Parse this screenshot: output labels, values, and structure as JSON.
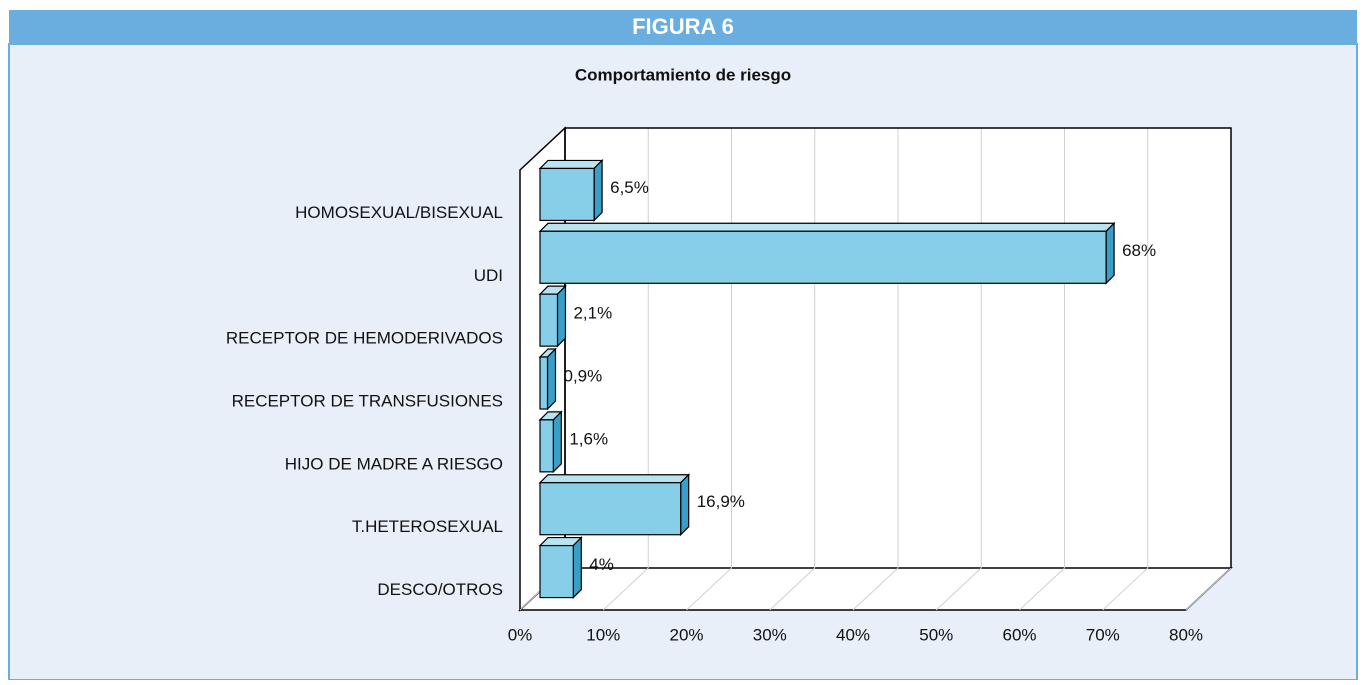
{
  "figure_label": "FIGURA 6",
  "chart_data": {
    "type": "bar3d",
    "orientation": "horizontal",
    "title": "Comportamiento de riesgo",
    "categories": [
      "HOMOSEXUAL/BISEXUAL",
      "UDI",
      "RECEPTOR DE HEMODERIVADOS",
      "RECEPTOR DE TRANSFUSIONES",
      "HIJO DE MADRE A RIESGO",
      "T.HETEROSEXUAL",
      "DESCO/OTROS"
    ],
    "values": [
      6.5,
      68,
      2.1,
      0.9,
      1.6,
      16.9,
      4
    ],
    "value_labels": [
      "6,5%",
      "68%",
      "2,1%",
      "0,9%",
      "1,6%",
      "16,9%",
      "4%"
    ],
    "color": "#87cfe8",
    "xlim": [
      0,
      80
    ],
    "xticks": [
      {
        "value": 0,
        "label": "0%"
      },
      {
        "value": 10,
        "label": "10%"
      },
      {
        "value": 20,
        "label": "20%"
      },
      {
        "value": 30,
        "label": "30%"
      },
      {
        "value": 40,
        "label": "40%"
      },
      {
        "value": 50,
        "label": "50%"
      },
      {
        "value": 60,
        "label": "60%"
      },
      {
        "value": 70,
        "label": "70%"
      },
      {
        "value": 80,
        "label": "80%"
      }
    ],
    "grid": true
  }
}
